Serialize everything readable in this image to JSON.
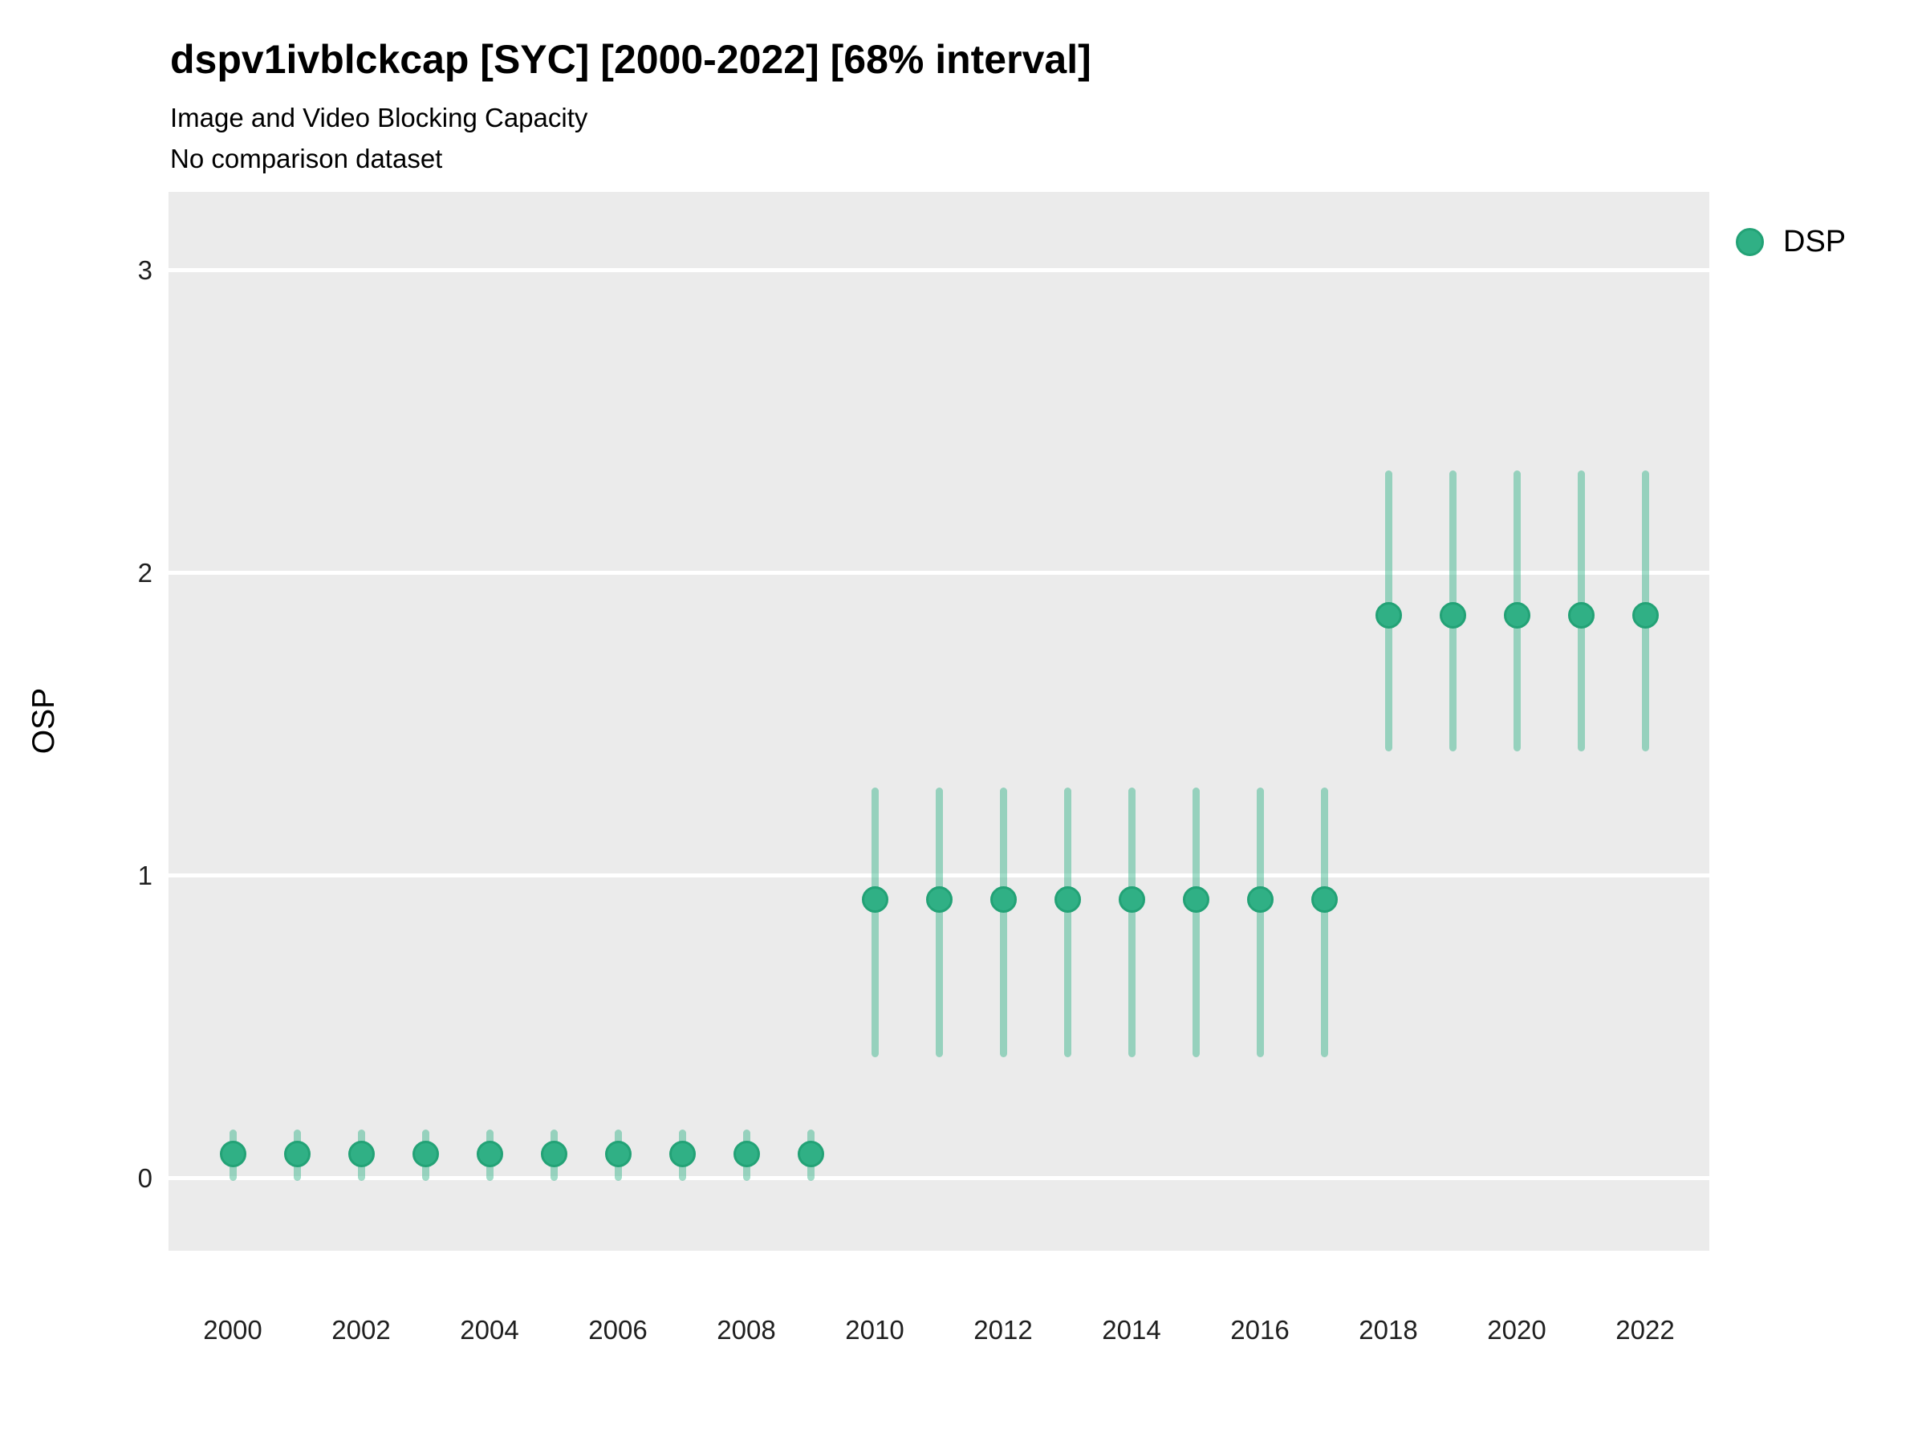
{
  "chart_data": {
    "type": "scatter",
    "title": "dspv1ivblckcap [SYC] [2000-2022] [68% interval]",
    "subtitle": "Image and Video Blocking Capacity",
    "note": "No comparison dataset",
    "xlabel": "",
    "ylabel": "OSP",
    "interval": "68%",
    "xlim": [
      1999,
      2023
    ],
    "ylim": [
      -0.24,
      3.26
    ],
    "x_ticks": [
      2000,
      2002,
      2004,
      2006,
      2008,
      2010,
      2012,
      2014,
      2016,
      2018,
      2020,
      2022
    ],
    "y_ticks": [
      0,
      1,
      2,
      3
    ],
    "grid": "horizontal-major-only",
    "legend": {
      "position": "right",
      "entries": [
        {
          "label": "DSP",
          "marker": "circle"
        }
      ]
    },
    "series": [
      {
        "name": "DSP",
        "points": [
          {
            "x": 2000,
            "y": 0.08,
            "lo": -0.01,
            "hi": 0.16
          },
          {
            "x": 2001,
            "y": 0.08,
            "lo": -0.01,
            "hi": 0.16
          },
          {
            "x": 2002,
            "y": 0.08,
            "lo": -0.01,
            "hi": 0.16
          },
          {
            "x": 2003,
            "y": 0.08,
            "lo": -0.01,
            "hi": 0.16
          },
          {
            "x": 2004,
            "y": 0.08,
            "lo": -0.01,
            "hi": 0.16
          },
          {
            "x": 2005,
            "y": 0.08,
            "lo": -0.01,
            "hi": 0.16
          },
          {
            "x": 2006,
            "y": 0.08,
            "lo": -0.01,
            "hi": 0.16
          },
          {
            "x": 2007,
            "y": 0.08,
            "lo": -0.01,
            "hi": 0.16
          },
          {
            "x": 2008,
            "y": 0.08,
            "lo": -0.01,
            "hi": 0.16
          },
          {
            "x": 2009,
            "y": 0.08,
            "lo": -0.01,
            "hi": 0.16
          },
          {
            "x": 2010,
            "y": 0.92,
            "lo": 0.4,
            "hi": 1.29
          },
          {
            "x": 2011,
            "y": 0.92,
            "lo": 0.4,
            "hi": 1.29
          },
          {
            "x": 2012,
            "y": 0.92,
            "lo": 0.4,
            "hi": 1.29
          },
          {
            "x": 2013,
            "y": 0.92,
            "lo": 0.4,
            "hi": 1.29
          },
          {
            "x": 2014,
            "y": 0.92,
            "lo": 0.4,
            "hi": 1.29
          },
          {
            "x": 2015,
            "y": 0.92,
            "lo": 0.4,
            "hi": 1.29
          },
          {
            "x": 2016,
            "y": 0.92,
            "lo": 0.4,
            "hi": 1.29
          },
          {
            "x": 2017,
            "y": 0.92,
            "lo": 0.4,
            "hi": 1.29
          },
          {
            "x": 2018,
            "y": 1.86,
            "lo": 1.41,
            "hi": 2.34
          },
          {
            "x": 2019,
            "y": 1.86,
            "lo": 1.41,
            "hi": 2.34
          },
          {
            "x": 2020,
            "y": 1.86,
            "lo": 1.41,
            "hi": 2.34
          },
          {
            "x": 2021,
            "y": 1.86,
            "lo": 1.41,
            "hi": 2.34
          },
          {
            "x": 2022,
            "y": 1.86,
            "lo": 1.41,
            "hi": 2.34
          }
        ]
      }
    ]
  },
  "style": {
    "panel_bg": "#ebebeb",
    "grid_color": "#ffffff",
    "point_fill": "#30b085",
    "point_border": "#23a276",
    "errorbar_color": "rgba(47,178,134,0.45)",
    "text_color": "#000000",
    "tick_color": "#1f1f1f"
  }
}
